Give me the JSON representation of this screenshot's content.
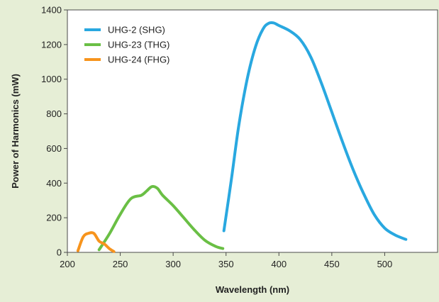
{
  "chart_data": {
    "type": "line",
    "xlabel": "Wavelength (nm)",
    "ylabel": "Power of Harmonics (mW)",
    "xlim": [
      200,
      550
    ],
    "ylim": [
      0,
      1400
    ],
    "xticks": [
      200,
      250,
      300,
      350,
      400,
      450,
      500
    ],
    "yticks": [
      0,
      200,
      400,
      600,
      800,
      1000,
      1200,
      1400
    ],
    "grid": false,
    "legend_position": "top-left",
    "series": [
      {
        "name": "UHG-2 (SHG)",
        "color": "#29a8e0",
        "x": [
          348,
          355,
          362,
          370,
          378,
          385,
          390,
          395,
          400,
          410,
          420,
          430,
          440,
          450,
          460,
          470,
          480,
          490,
          500,
          510,
          520
        ],
        "y": [
          125,
          420,
          730,
          1000,
          1190,
          1290,
          1322,
          1325,
          1310,
          1280,
          1230,
          1130,
          980,
          810,
          640,
          480,
          340,
          220,
          140,
          100,
          75
        ]
      },
      {
        "name": "UHG-23 (THG)",
        "color": "#6abf45",
        "x": [
          230,
          240,
          250,
          260,
          270,
          275,
          280,
          285,
          290,
          300,
          310,
          320,
          330,
          340,
          347
        ],
        "y": [
          15,
          110,
          220,
          310,
          330,
          355,
          380,
          370,
          330,
          270,
          200,
          130,
          70,
          35,
          22
        ]
      },
      {
        "name": "UHG-24 (FHG)",
        "color": "#f7941d",
        "x": [
          210,
          215,
          220,
          225,
          230,
          235,
          240,
          244
        ],
        "y": [
          10,
          90,
          110,
          110,
          65,
          48,
          20,
          5
        ]
      }
    ]
  }
}
